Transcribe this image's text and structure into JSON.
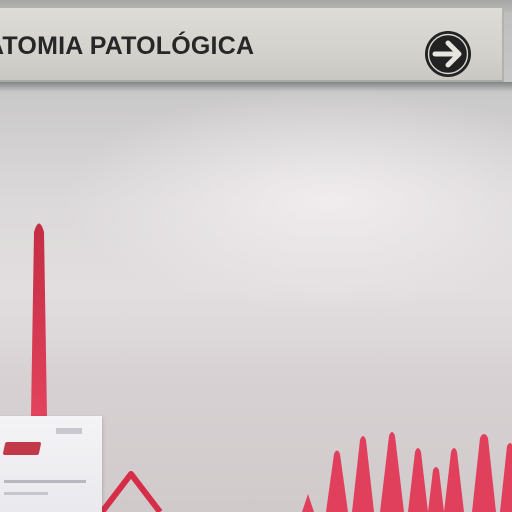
{
  "sign": {
    "text": "ATOMIA PATOLÓGICA",
    "arrow_icon": "arrow-right-circle-icon",
    "background": "#d7d6d1",
    "text_color": "#272727"
  },
  "wall": {
    "background": "#dedadb",
    "accent_red": "#d9344f"
  }
}
